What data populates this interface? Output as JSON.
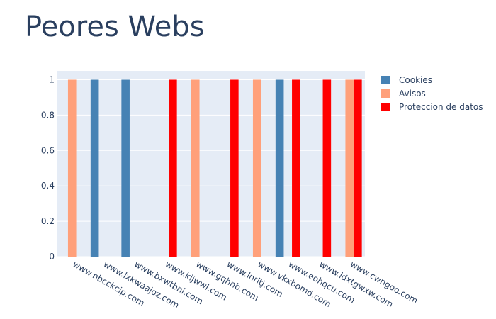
{
  "chart_data": {
    "type": "bar",
    "title": "Peores Webs",
    "xlabel": "",
    "ylabel": "",
    "categories": [
      "www.nbcckcip.com",
      "www.lxkwaajoz.com",
      "www.bxwtbni.com",
      "www.kijwwl.com",
      "www.gqhnb.com",
      "www.lnritj.com",
      "www.vkxbomd.com",
      "www.eohqcu.com",
      "www.ldxtgwxw.com",
      "www.cwngoo.com"
    ],
    "series": [
      {
        "name": "Cookies",
        "color": "#4682b4",
        "values": [
          0,
          1,
          1,
          0,
          0,
          0,
          0,
          1,
          0,
          0
        ]
      },
      {
        "name": "Avisos",
        "color": "#ffa07a",
        "values": [
          1,
          0,
          0,
          0,
          1,
          0,
          1,
          0,
          0,
          1
        ]
      },
      {
        "name": "Proteccion de datos",
        "color": "#ff0000",
        "values": [
          0,
          0,
          0,
          1,
          0,
          1,
          0,
          1,
          1,
          1
        ]
      }
    ],
    "ylim": [
      0,
      1.05
    ],
    "yticks": [
      "0",
      "0.2",
      "0.4",
      "0.6",
      "0.8",
      "1"
    ],
    "grid": true,
    "legend_position": "top-right"
  }
}
